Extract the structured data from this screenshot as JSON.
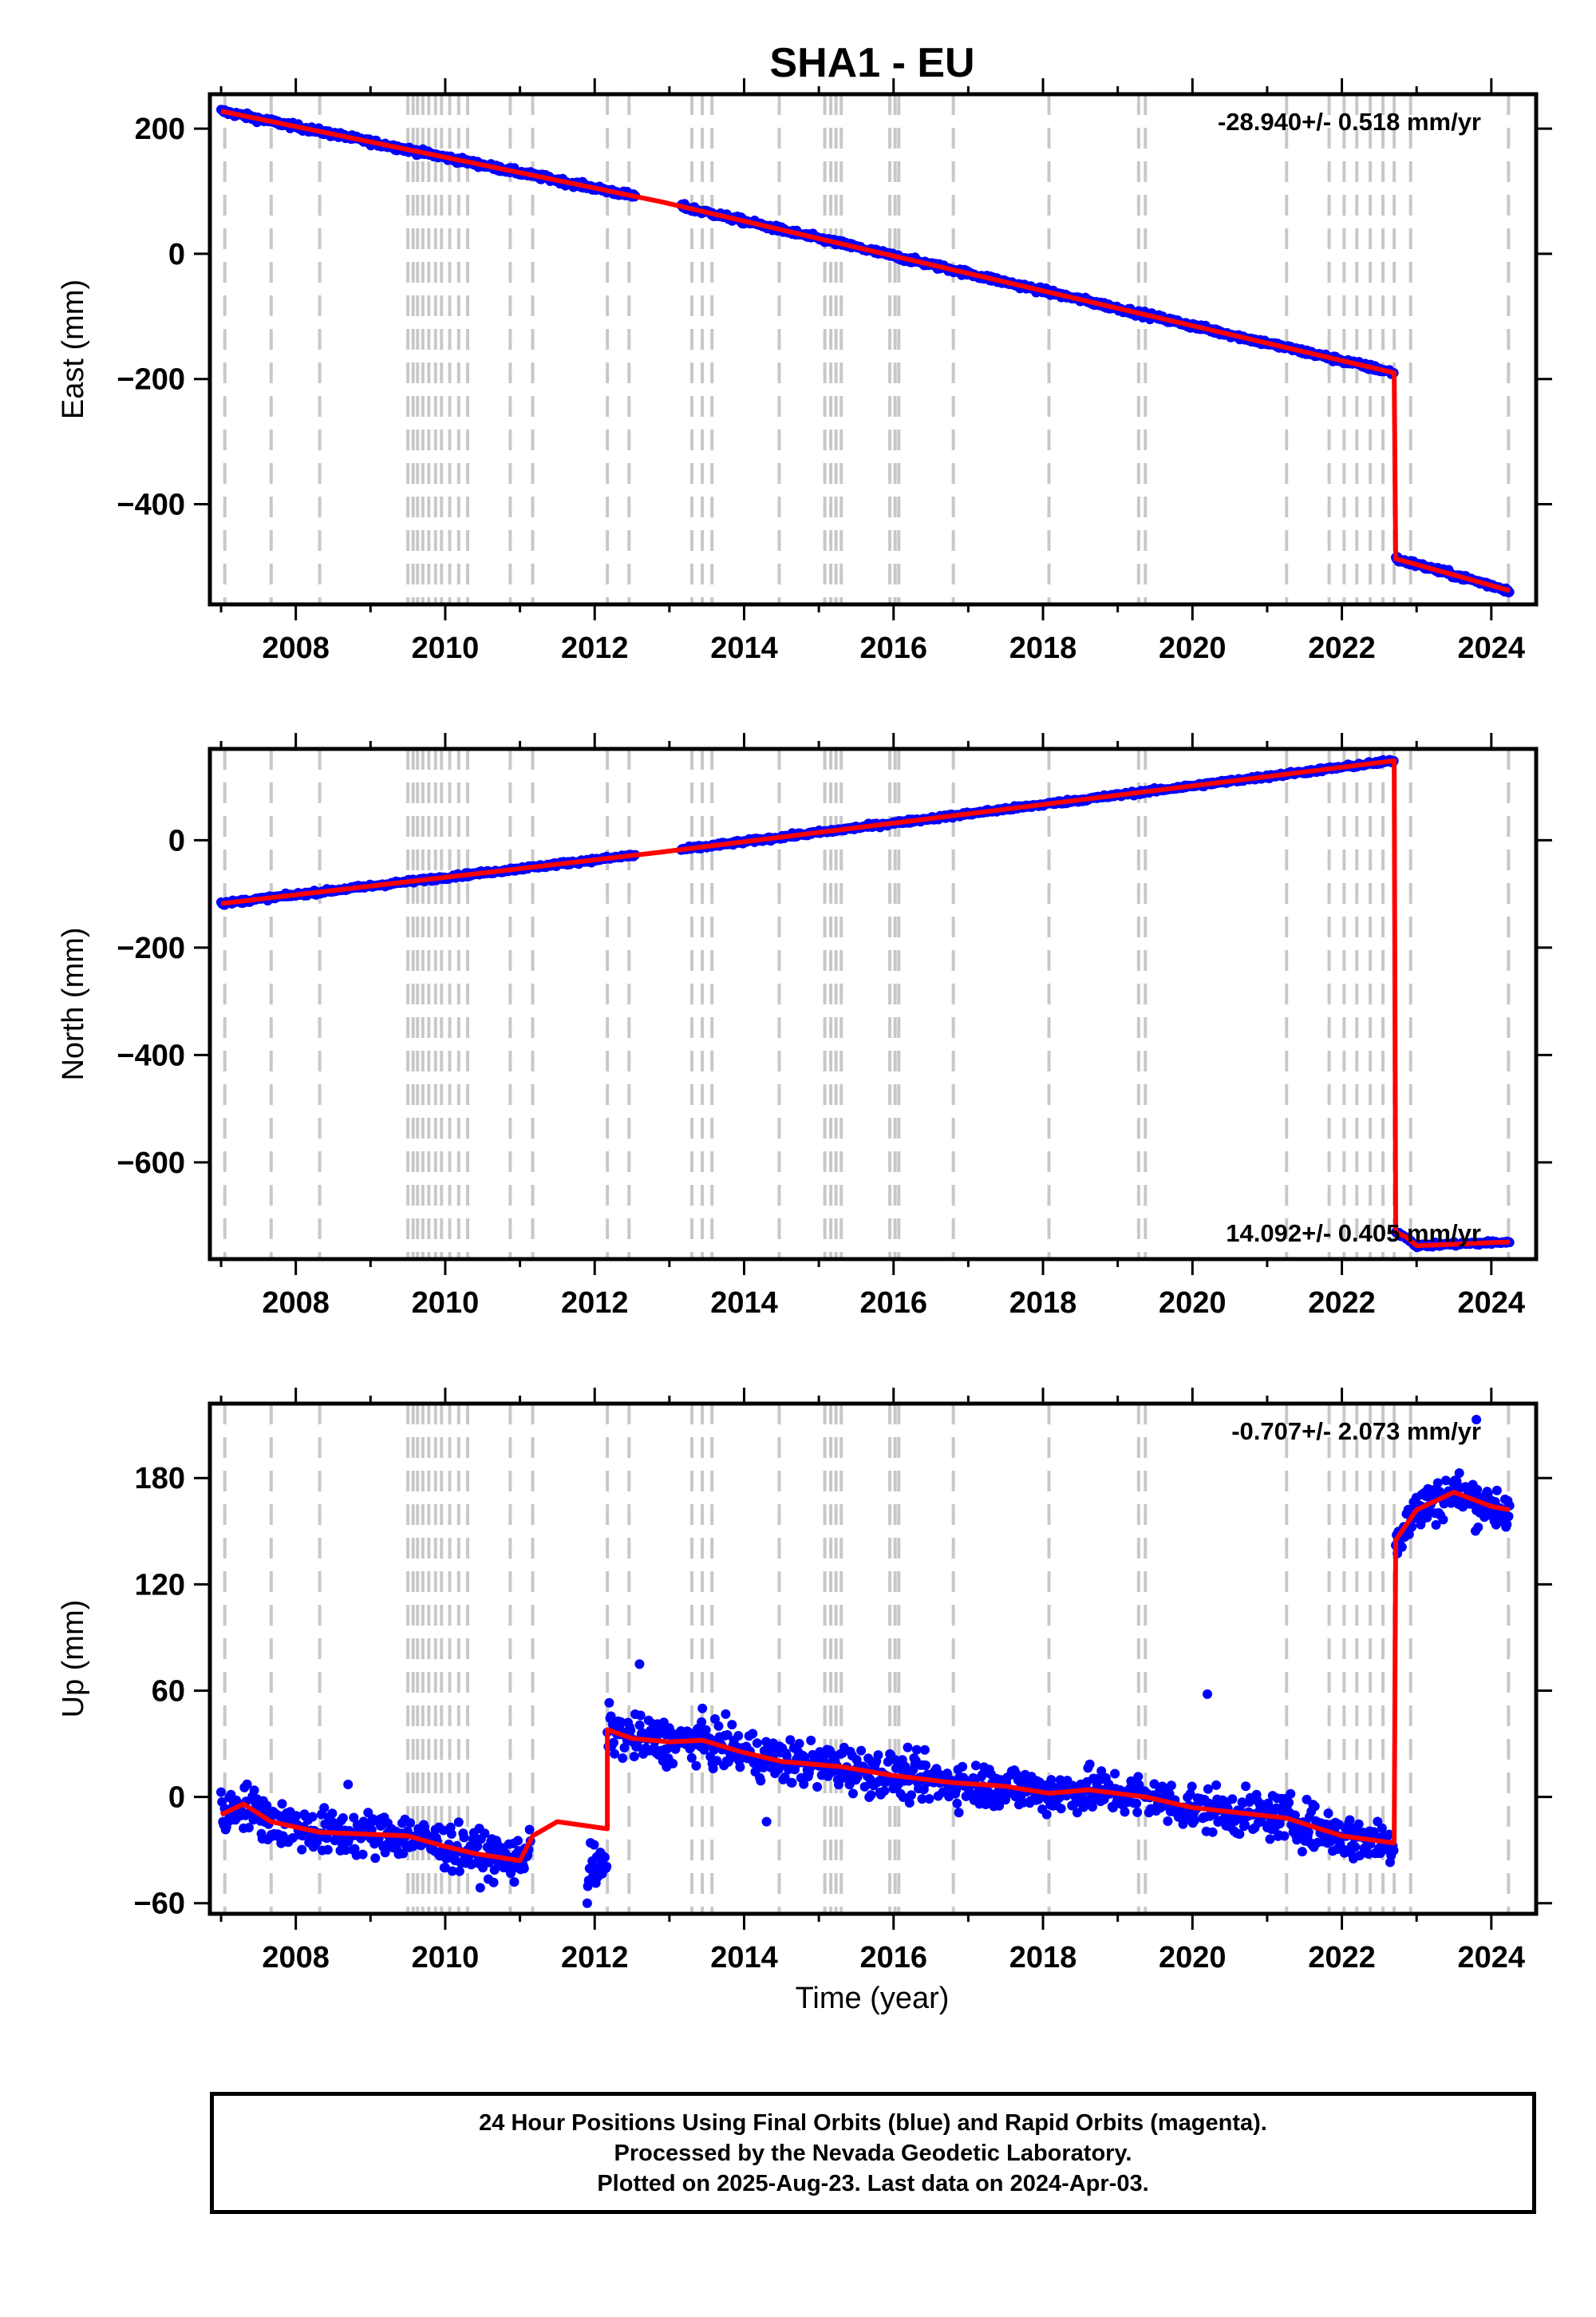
{
  "chart_data": {
    "type": "scatter",
    "title": "SHA1 - EU",
    "xlabel": "Time (year)",
    "xlim": [
      2006.85,
      2024.6
    ],
    "x_ticks": [
      2008,
      2010,
      2012,
      2014,
      2016,
      2018,
      2020,
      2022,
      2024
    ],
    "x_tick_labels": [
      "2008",
      "2010",
      "2012",
      "2014",
      "2016",
      "2018",
      "2020",
      "2022",
      "2024"
    ],
    "grid": false,
    "series_legend": {
      "final_orbits": "blue",
      "rapid_orbits": "magenta",
      "model": "red"
    },
    "colors": {
      "data": "#0000ff",
      "model": "#ff0000",
      "event_line": "#c8c8c8",
      "frame": "#000000"
    },
    "event_lines": [
      2007.05,
      2007.67,
      2008.32,
      2009.5,
      2009.57,
      2009.63,
      2009.7,
      2009.78,
      2009.87,
      2009.95,
      2010.06,
      2010.18,
      2010.3,
      2010.87,
      2011.17,
      2012.17,
      2012.46,
      2013.3,
      2013.44,
      2013.57,
      2014.47,
      2015.08,
      2015.16,
      2015.23,
      2015.3,
      2015.95,
      2016.02,
      2016.07,
      2016.8,
      2018.08,
      2019.28,
      2019.37,
      2021.26,
      2021.83,
      2022.03,
      2022.2,
      2022.38,
      2022.55,
      2022.7,
      2022.92,
      2024.23
    ],
    "panels": [
      {
        "ylabel": "East (mm)",
        "ylim": [
          -560,
          255
        ],
        "y_ticks": [
          200,
          0,
          -200,
          -400
        ],
        "y_tick_labels": [
          "200",
          "0",
          "−200",
          "−400"
        ],
        "rate_text": "-28.940+/- 0.518 mm/yr",
        "rate_position": "top-right",
        "series": [
          {
            "name": "East model",
            "segments": [
              {
                "x": [
                  2007.0,
                  2012.9,
                  2022.7
                ],
                "y": [
                  228,
                  83,
                  -190
                ]
              },
              {
                "x": [
                  2022.72,
                  2024.25
                ],
                "y": [
                  -487,
                  -538
                ]
              }
            ]
          }
        ],
        "noise": 4.5
      },
      {
        "ylabel": "North (mm)",
        "ylim": [
          -780,
          170
        ],
        "y_ticks": [
          0,
          -200,
          -400,
          -600
        ],
        "y_tick_labels": [
          "0",
          "−200",
          "−400",
          "−600"
        ],
        "rate_text": "14.092+/- 0.405 mm/yr",
        "rate_position": "bottom-right",
        "series": [
          {
            "name": "North model",
            "segments": [
              {
                "x": [
                  2007.0,
                  2012.9,
                  2022.7
                ],
                "y": [
                  -118,
                  -22,
                  148
                ]
              },
              {
                "x": [
                  2022.72,
                  2022.85,
                  2023.0,
                  2024.25
                ],
                "y": [
                  -730,
                  -738,
                  -755,
                  -748
                ]
              }
            ]
          }
        ],
        "noise": 3.5
      },
      {
        "ylabel": "Up (mm)",
        "ylim": [
          -66,
          222
        ],
        "y_ticks": [
          180,
          120,
          60,
          0,
          -60
        ],
        "y_tick_labels": [
          "180",
          "120",
          "60",
          "0",
          "−60"
        ],
        "rate_text": "-0.707+/- 2.073 mm/yr",
        "rate_position": "top-right",
        "series": [
          {
            "name": "Up model",
            "segments": [
              {
                "x": [
                  2007.0,
                  2007.3,
                  2007.67,
                  2008.32,
                  2009.5,
                  2010.0,
                  2010.4,
                  2011.0,
                  2011.17,
                  2011.5,
                  2012.17
                ],
                "y": [
                  -10,
                  -4,
                  -14,
                  -20,
                  -22,
                  -28,
                  -32,
                  -36,
                  -22,
                  -14,
                  -18
                ]
              },
              {
                "x": [
                  2012.17,
                  2012.5,
                  2013.0,
                  2013.44,
                  2014.0,
                  2014.5,
                  2015.3,
                  2016.0,
                  2016.8,
                  2017.5,
                  2018.08,
                  2018.6,
                  2019.37,
                  2020.0,
                  2021.26,
                  2022.0,
                  2022.7
                ],
                "y": [
                  38,
                  33,
                  31,
                  32,
                  25,
                  20,
                  17,
                  12,
                  8,
                  6,
                  2,
                  4,
                  0,
                  -6,
                  -12,
                  -22,
                  -26
                ]
              },
              {
                "x": [
                  2022.72,
                  2023.0,
                  2023.5,
                  2024.0,
                  2024.25
                ],
                "y": [
                  145,
                  162,
                  172,
                  164,
                  162
                ]
              }
            ]
          }
        ],
        "noise": 12,
        "outliers": [
          {
            "x": 2023.8,
            "y": 213
          },
          {
            "x": 2020.2,
            "y": 58
          },
          {
            "x": 2012.6,
            "y": 75
          },
          {
            "x": 2011.9,
            "y": -60
          },
          {
            "x": 2008.7,
            "y": 7
          },
          {
            "x": 2014.3,
            "y": -14
          }
        ]
      }
    ]
  },
  "footer": {
    "line1": "24 Hour Positions Using Final Orbits (blue) and Rapid Orbits (magenta).",
    "line2": "Processed by the Nevada Geodetic Laboratory.",
    "line3": "Plotted on 2025-Aug-23. Last data on 2024-Apr-03."
  }
}
